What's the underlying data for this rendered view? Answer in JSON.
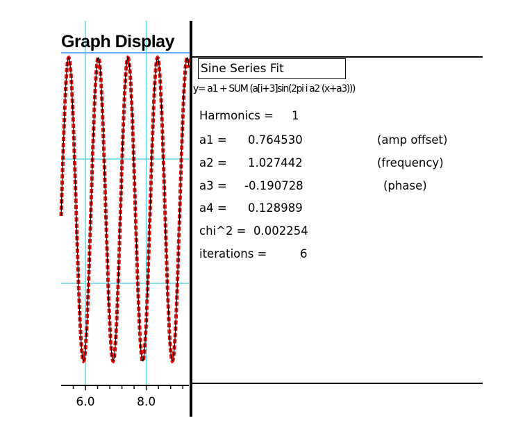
{
  "window": {
    "title": "Graph Display"
  },
  "fit_panel": {
    "title": "Sine Series Fit",
    "formula": "y= a1 + SUM (a[i+3]sin(2pi i a2 (x+a3)))",
    "rows": [
      {
        "label": "Harmonics =",
        "value": "1",
        "note": ""
      },
      {
        "label": "a1 =",
        "value": "0.764530",
        "note": "(amp offset)"
      },
      {
        "label": "a2 =",
        "value": "1.027442",
        "note": "(frequency)"
      },
      {
        "label": "a3 =",
        "value": "-0.190728",
        "note": "(phase)"
      },
      {
        "label": "a4 =",
        "value": "0.128989",
        "note": ""
      },
      {
        "label": "chi^2 =",
        "value": "0.002254",
        "note": ""
      },
      {
        "label": "iterations =",
        "value": "6",
        "note": ""
      }
    ]
  },
  "chart_data": {
    "type": "line",
    "x_tick_labels": [
      "6.0",
      "8.0"
    ],
    "xlim": [
      5.2,
      9.4
    ],
    "series": [
      {
        "style": "dashed",
        "color": "#ff0000",
        "frequency": 1.027442,
        "phase": -0.190728
      },
      {
        "style": "solid",
        "color": "#000000",
        "frequency": 1.027442,
        "phase": -0.190728
      }
    ],
    "gridline_color": "#5fd8e8"
  }
}
